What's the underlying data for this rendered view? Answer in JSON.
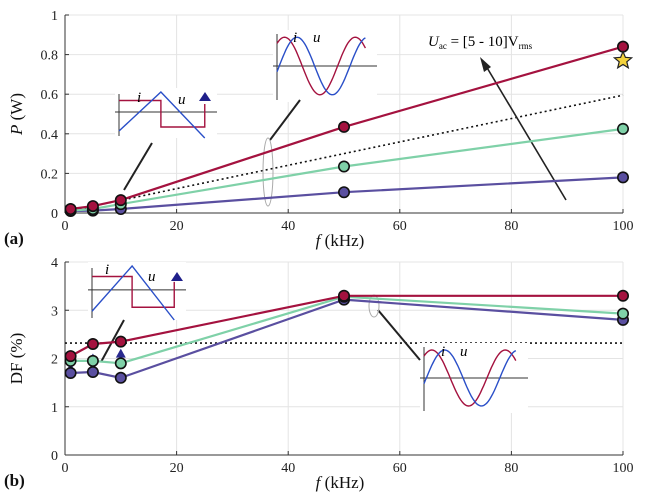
{
  "chart_data": [
    {
      "type": "line",
      "panel_label": "(a)",
      "ylabel": "P (W)",
      "ylabel_var": "P",
      "ylabel_unit": "(W)",
      "xlabel": "f (kHz)",
      "xlabel_var": "f",
      "xlabel_unit": "(kHz)",
      "xlim": [
        0,
        100
      ],
      "ylim": [
        0,
        1
      ],
      "xticks": [
        "0",
        "20",
        "40",
        "60",
        "80",
        "100"
      ],
      "yticks": [
        "0",
        "0.2",
        "0.4",
        "0.6",
        "0.8",
        "1"
      ],
      "grid": true,
      "colors": {
        "top": "#a4123f",
        "mid": "#7fd1a8",
        "bottom": "#5a4fa0",
        "dotted": "#111111",
        "star": "#f3d23c"
      },
      "series": [
        {
          "key": "top",
          "points": [
            [
              1,
              0.02
            ],
            [
              5,
              0.035
            ],
            [
              10,
              0.065
            ],
            [
              50,
              0.435
            ],
            [
              100,
              0.84
            ]
          ]
        },
        {
          "key": "mid",
          "points": [
            [
              1,
              0.012
            ],
            [
              5,
              0.02
            ],
            [
              10,
              0.045
            ],
            [
              50,
              0.235
            ],
            [
              100,
              0.425
            ]
          ]
        },
        {
          "key": "bottom",
          "points": [
            [
              1,
              0.01
            ],
            [
              5,
              0.012
            ],
            [
              10,
              0.02
            ],
            [
              50,
              0.105
            ],
            [
              100,
              0.18
            ]
          ]
        }
      ],
      "dotted_line": [
        [
          0,
          0.005
        ],
        [
          100,
          0.595
        ]
      ],
      "star_point": [
        100,
        0.77
      ],
      "triangle_points": [
        [
          1,
          0.022
        ],
        [
          5,
          0.035
        ],
        [
          10,
          0.065
        ]
      ],
      "annotation": {
        "U": "U",
        "sub_ac": "ac",
        "eq": " = [5 - 10]V",
        "sub_rms": "rms"
      },
      "inset_labels": {
        "i": "i",
        "u": "u"
      }
    },
    {
      "type": "line",
      "panel_label": "(b)",
      "ylabel": "DF (%)",
      "xlabel": "f (kHz)",
      "xlabel_var": "f",
      "xlabel_unit": "(kHz)",
      "xlim": [
        0,
        100
      ],
      "ylim": [
        0,
        4
      ],
      "xticks": [
        "0",
        "20",
        "40",
        "60",
        "80",
        "100"
      ],
      "yticks": [
        "0",
        "1",
        "2",
        "3",
        "4"
      ],
      "grid": true,
      "series": [
        {
          "key": "top",
          "points": [
            [
              1,
              2.05
            ],
            [
              5,
              2.3
            ],
            [
              10,
              2.35
            ],
            [
              50,
              3.3
            ],
            [
              100,
              3.3
            ]
          ]
        },
        {
          "key": "mid",
          "points": [
            [
              1,
              1.95
            ],
            [
              5,
              1.95
            ],
            [
              10,
              1.9
            ],
            [
              50,
              3.28
            ],
            [
              100,
              2.93
            ]
          ]
        },
        {
          "key": "bottom",
          "points": [
            [
              1,
              1.7
            ],
            [
              5,
              1.72
            ],
            [
              10,
              1.6
            ],
            [
              50,
              3.22
            ],
            [
              100,
              2.8
            ]
          ]
        }
      ],
      "dotted_line": [
        [
          0,
          2.32
        ],
        [
          100,
          2.32
        ]
      ],
      "triangle_points": [
        [
          1,
          1.8
        ],
        [
          5,
          2.0
        ],
        [
          10,
          2.1
        ]
      ],
      "inset_labels": {
        "i": "i",
        "u": "u"
      }
    }
  ]
}
